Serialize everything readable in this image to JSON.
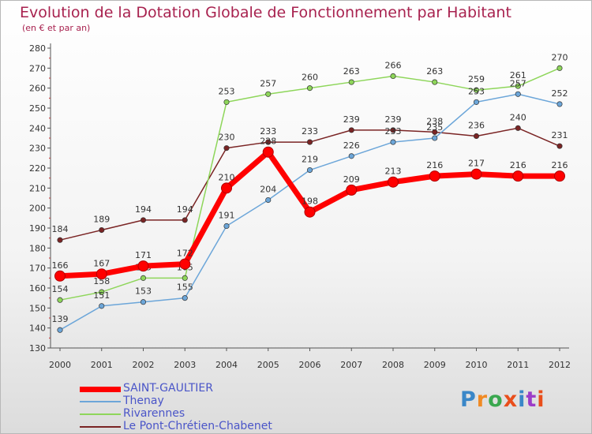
{
  "chart_data": {
    "type": "line",
    "title": "Evolution de la Dotation Globale de Fonctionnement par Habitant",
    "subtitle": "(en € et par an)",
    "xlabel": "",
    "ylabel": "",
    "categories": [
      "2000",
      "2001",
      "2002",
      "2003",
      "2004",
      "2005",
      "2006",
      "2007",
      "2008",
      "2009",
      "2010",
      "2011",
      "2012"
    ],
    "ylim": [
      130,
      280
    ],
    "yticks": [
      130,
      140,
      150,
      160,
      170,
      180,
      190,
      200,
      210,
      220,
      230,
      240,
      250,
      260,
      270,
      280
    ],
    "grid": false,
    "series": [
      {
        "name": "SAINT-GAULTIER",
        "color": "#ff0000",
        "values": [
          166,
          167,
          171,
          172,
          210,
          228,
          198,
          209,
          213,
          216,
          217,
          216,
          216
        ],
        "labels": [
          "166",
          "167",
          "171",
          "172",
          "210",
          "228",
          "198",
          "209",
          "213",
          "216",
          "217",
          "216",
          "216"
        ]
      },
      {
        "name": "Thenay",
        "color": "#6ca6d9",
        "values": [
          139,
          151,
          153,
          155,
          191,
          204,
          219,
          226,
          233,
          235,
          253,
          257,
          252
        ],
        "labels": [
          "139",
          "151",
          "153",
          "155",
          "191",
          "204",
          "219",
          "226",
          "233",
          "235",
          "253",
          "257",
          "252"
        ]
      },
      {
        "name": "Rivarennes",
        "color": "#8ed65a",
        "values": [
          154,
          158,
          165,
          165,
          253,
          257,
          260,
          263,
          266,
          263,
          259,
          261,
          270
        ],
        "labels": [
          "154",
          "158",
          "165",
          "165",
          "253",
          "257",
          "260",
          "263",
          "266",
          "263",
          "259",
          "261",
          "270"
        ]
      },
      {
        "name": "Le Pont-Chrétien-Chabenet",
        "color": "#7a2424",
        "values": [
          184,
          189,
          194,
          194,
          230,
          233,
          233,
          239,
          239,
          238,
          236,
          240,
          231
        ],
        "labels": [
          "184",
          "189",
          "194",
          "194",
          "230",
          "233",
          "233",
          "239",
          "239",
          "238",
          "236",
          "240",
          "231"
        ]
      }
    ],
    "legend_position": "bottom-left"
  },
  "logo": {
    "text": "Proxiti",
    "colors": [
      "#3a87c8",
      "#f08a24",
      "#3aa84f",
      "#e94e1b",
      "#3a87c8",
      "#9c3cc8",
      "#e94e1b"
    ]
  }
}
